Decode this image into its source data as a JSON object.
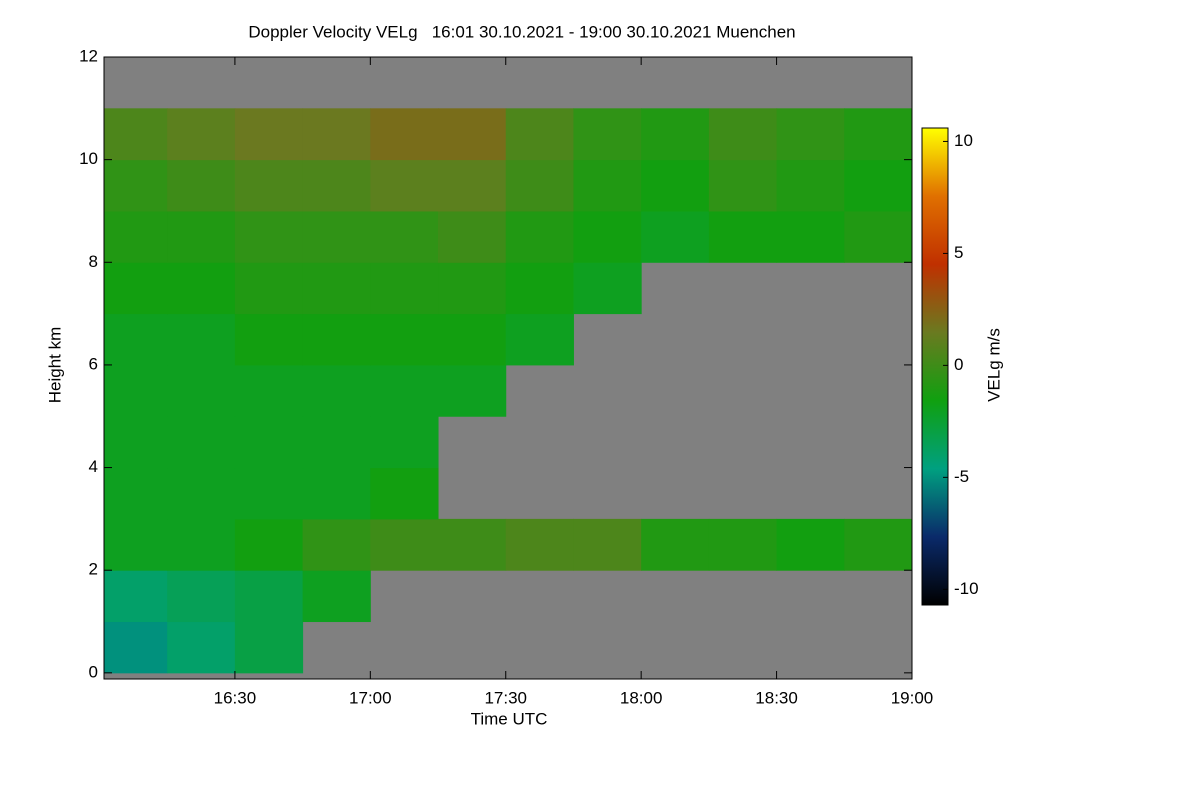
{
  "chart_data": {
    "type": "heatmap",
    "title": "Doppler Velocity VELg   16:01 30.10.2021 - 19:00 30.10.2021 Muenchen",
    "x_label": "Time UTC",
    "y_label": "Height km",
    "xlim": [
      "16:01",
      "19:00"
    ],
    "xticks": [
      "16:30",
      "17:00",
      "17:30",
      "18:00",
      "18:30",
      "19:00"
    ],
    "ylim": [
      -0.12,
      12
    ],
    "yticks": [
      0,
      2,
      4,
      6,
      8,
      10,
      12
    ],
    "x": [
      "16:01",
      "16:15",
      "16:30",
      "16:45",
      "17:00",
      "17:15",
      "17:30",
      "17:45",
      "18:00",
      "18:15",
      "18:30",
      "18:45",
      "19:00"
    ],
    "y": [
      0,
      1,
      2,
      3,
      4,
      5,
      6,
      7,
      8,
      9,
      10,
      11,
      12
    ],
    "values": [
      [
        -5,
        -4,
        -3,
        null,
        null,
        null,
        null,
        null,
        null,
        null,
        null,
        null
      ],
      [
        -4,
        -3.5,
        -3,
        -2,
        null,
        null,
        null,
        null,
        null,
        null,
        null,
        null
      ],
      [
        -2,
        -2,
        -1.5,
        -0.5,
        0,
        0,
        0.5,
        0.5,
        -1,
        -1,
        -1.5,
        -1
      ],
      [
        -2,
        -2,
        -2,
        -2,
        -1.5,
        null,
        null,
        null,
        null,
        null,
        null,
        null
      ],
      [
        -2,
        -2,
        -2,
        -2,
        -2,
        null,
        null,
        null,
        null,
        null,
        null,
        null
      ],
      [
        -2,
        -2,
        -2,
        -2,
        -2,
        -2,
        null,
        null,
        null,
        null,
        null,
        null
      ],
      [
        -2,
        -2,
        -1.5,
        -1.5,
        -1.5,
        -1.5,
        -2,
        null,
        null,
        null,
        null,
        null
      ],
      [
        -1.5,
        -1.5,
        -1,
        -1,
        -1,
        -1,
        -1.5,
        -2,
        null,
        null,
        null,
        null
      ],
      [
        -1,
        -1,
        -0.5,
        -0.5,
        -0.5,
        0,
        -1,
        -1.5,
        -2,
        -1.5,
        -1.5,
        -1
      ],
      [
        -0.5,
        0,
        0.5,
        0.5,
        1,
        1,
        0,
        -1,
        -1.5,
        -0.5,
        -1,
        -1.5
      ],
      [
        0.5,
        1,
        1.5,
        1.5,
        2,
        2,
        0.5,
        -0.5,
        -1,
        0,
        -0.5,
        -1
      ],
      [
        null,
        null,
        null,
        null,
        null,
        null,
        null,
        null,
        null,
        null,
        null,
        null
      ]
    ],
    "missing_color": "#808080",
    "colorbar": {
      "label": "VELg m/s",
      "lim": [
        -10.7,
        10.6
      ],
      "ticks": [
        -10,
        -5,
        0,
        5,
        10
      ],
      "colors": [
        "#000000",
        "#0a2a6a",
        "#00a080",
        "#10a010",
        "#6a7a20",
        "#c03000",
        "#e07000",
        "#ffff00"
      ]
    }
  }
}
